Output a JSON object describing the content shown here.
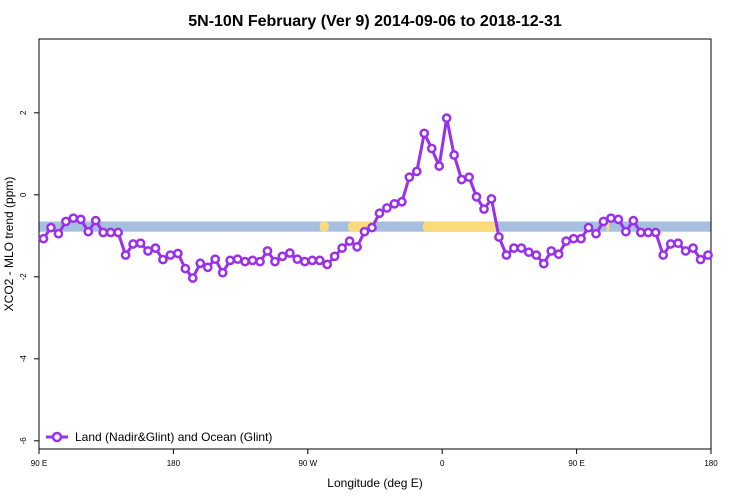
{
  "chart_data": {
    "type": "line",
    "title": "5N-10N February (Ver 9)   2014-09-06 to 2018-12-31",
    "xlabel": "Longitude (deg E)",
    "ylabel": "XCO2 - MLO trend (ppm)",
    "xlim": [
      90,
      540
    ],
    "ylim": [
      -6.2,
      3.8
    ],
    "x_ticks": [
      {
        "value": 90,
        "label": "90 E"
      },
      {
        "value": 180,
        "label": "180"
      },
      {
        "value": 270,
        "label": "90 W"
      },
      {
        "value": 360,
        "label": "0"
      },
      {
        "value": 450,
        "label": "90 E"
      },
      {
        "value": 540,
        "label": "180"
      }
    ],
    "y_ticks": [
      {
        "value": -6,
        "label": "-6"
      },
      {
        "value": -4,
        "label": "-4"
      },
      {
        "value": -2,
        "label": "-2"
      },
      {
        "value": 0,
        "label": "0"
      },
      {
        "value": 2,
        "label": "2"
      }
    ],
    "land_ocean_band": {
      "y_range": [
        -0.9,
        -0.65
      ],
      "ocean_color": "#a7bfde",
      "land_color": "#fada7a",
      "land_segments": [
        [
          278,
          284
        ],
        [
          297,
          316
        ],
        [
          347,
          397
        ],
        [
          470,
          472
        ]
      ]
    },
    "legend": {
      "position": "bottom-left"
    },
    "series": [
      {
        "name": "Land (Nadir&Glint) and Ocean (Glint)",
        "color": "#9b30ea",
        "x": [
          93,
          98,
          103,
          108,
          113,
          118,
          123,
          128,
          133,
          138,
          143,
          148,
          153,
          158,
          163,
          168,
          173,
          178,
          183,
          188,
          193,
          198,
          203,
          208,
          213,
          218,
          223,
          228,
          233,
          238,
          243,
          248,
          253,
          258,
          263,
          268,
          273,
          278,
          283,
          288,
          293,
          298,
          303,
          308,
          313,
          318,
          323,
          328,
          333,
          338,
          343,
          348,
          353,
          358,
          363,
          368,
          373,
          378,
          383,
          388,
          393,
          398,
          403,
          408,
          413,
          418,
          423,
          428,
          433,
          438,
          443,
          448,
          453,
          458,
          463,
          468,
          473,
          478,
          483,
          488,
          493,
          498,
          503,
          508,
          513,
          518,
          523,
          528,
          533,
          538
        ],
        "values": [
          -1.07,
          -0.8,
          -0.95,
          -0.65,
          -0.57,
          -0.6,
          -0.9,
          -0.63,
          -0.92,
          -0.92,
          -0.92,
          -1.47,
          -1.2,
          -1.18,
          -1.37,
          -1.3,
          -1.58,
          -1.47,
          -1.43,
          -1.8,
          -2.03,
          -1.67,
          -1.77,
          -1.57,
          -1.9,
          -1.6,
          -1.57,
          -1.63,
          -1.6,
          -1.63,
          -1.37,
          -1.63,
          -1.5,
          -1.42,
          -1.57,
          -1.63,
          -1.6,
          -1.6,
          -1.7,
          -1.5,
          -1.3,
          -1.13,
          -1.27,
          -0.9,
          -0.8,
          -0.45,
          -0.32,
          -0.22,
          -0.17,
          0.43,
          0.57,
          1.5,
          1.13,
          0.7,
          1.87,
          0.97,
          0.37,
          0.43,
          -0.05,
          -0.35,
          -0.1,
          -1.03,
          -1.47,
          -1.3,
          -1.3,
          -1.4,
          -1.47,
          -1.68,
          -1.37,
          -1.45,
          -1.13,
          -1.07,
          -1.07,
          -0.8,
          -0.95,
          -0.65,
          -0.57,
          -0.6,
          -0.9,
          -0.63,
          -0.92,
          -0.92,
          -0.92,
          -1.47,
          -1.2,
          -1.18,
          -1.37,
          -1.3,
          -1.58,
          -1.47
        ]
      }
    ]
  }
}
